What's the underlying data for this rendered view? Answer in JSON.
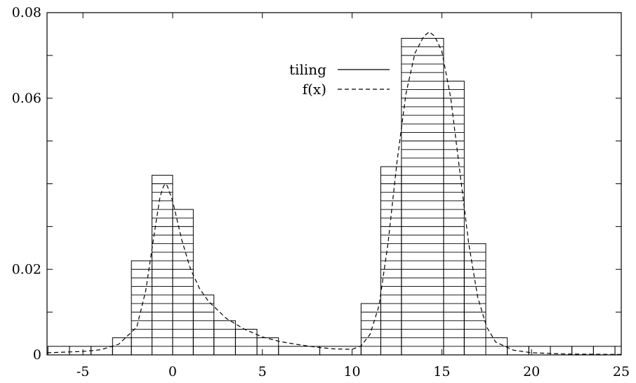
{
  "chart_data": {
    "type": "bar",
    "xlim": [
      -7,
      25
    ],
    "ylim": [
      0,
      0.08
    ],
    "x_ticks": [
      -5,
      0,
      5,
      10,
      15,
      20,
      25
    ],
    "y_ticks": [
      0,
      0.02,
      0.06,
      0.08
    ],
    "x_tick_labels": [
      "-5",
      "0",
      "5",
      "10",
      "15",
      "20",
      "25"
    ],
    "y_tick_labels": [
      "0",
      "0.02",
      "0.06",
      "0.08"
    ],
    "legend_position": "top-center",
    "grid": false,
    "series": [
      {
        "name": "tiling",
        "kind": "histogram",
        "line_style": "solid",
        "tile_height": 0.002,
        "bins": [
          {
            "x0": -6.95,
            "x1": -5.75,
            "y": 0.002
          },
          {
            "x0": -5.75,
            "x1": -4.55,
            "y": 0.002
          },
          {
            "x0": -4.55,
            "x1": -3.35,
            "y": 0.002
          },
          {
            "x0": -3.35,
            "x1": -2.3,
            "y": 0.004
          },
          {
            "x0": -2.3,
            "x1": -1.15,
            "y": 0.022
          },
          {
            "x0": -1.15,
            "x1": 0.0,
            "y": 0.042
          },
          {
            "x0": 0.0,
            "x1": 1.15,
            "y": 0.034
          },
          {
            "x0": 1.15,
            "x1": 2.3,
            "y": 0.014
          },
          {
            "x0": 2.3,
            "x1": 3.5,
            "y": 0.008
          },
          {
            "x0": 3.5,
            "x1": 4.7,
            "y": 0.006
          },
          {
            "x0": 4.7,
            "x1": 5.9,
            "y": 0.004
          },
          {
            "x0": 5.9,
            "x1": 8.2,
            "y": 0.002
          },
          {
            "x0": 8.2,
            "x1": 10.5,
            "y": 0.002
          },
          {
            "x0": 10.5,
            "x1": 11.6,
            "y": 0.012
          },
          {
            "x0": 11.6,
            "x1": 12.75,
            "y": 0.044
          },
          {
            "x0": 12.75,
            "x1": 15.1,
            "y": 0.074
          },
          {
            "x0": 15.1,
            "x1": 16.25,
            "y": 0.064
          },
          {
            "x0": 16.25,
            "x1": 17.45,
            "y": 0.026
          },
          {
            "x0": 17.45,
            "x1": 18.65,
            "y": 0.004
          },
          {
            "x0": 18.65,
            "x1": 19.85,
            "y": 0.002
          },
          {
            "x0": 19.85,
            "x1": 21.05,
            "y": 0.002
          },
          {
            "x0": 21.05,
            "x1": 22.25,
            "y": 0.002
          },
          {
            "x0": 22.25,
            "x1": 23.45,
            "y": 0.002
          },
          {
            "x0": 23.45,
            "x1": 24.65,
            "y": 0.002
          },
          {
            "x0": 24.65,
            "x1": 25.0,
            "y": 0.002
          }
        ]
      },
      {
        "name": "f(x)",
        "kind": "line",
        "line_style": "dashed",
        "x": [
          -7,
          -5,
          -4,
          -3,
          -2,
          -1.5,
          -1,
          -0.7,
          -0.5,
          -0.4,
          -0.3,
          0,
          0.5,
          1,
          1.5,
          2,
          3,
          4,
          5,
          6,
          7,
          8,
          9,
          10,
          10.5,
          11,
          11.5,
          12,
          12.5,
          13,
          13.5,
          14,
          14.3,
          14.6,
          15,
          15.5,
          16,
          16.5,
          17,
          17.5,
          18,
          19,
          20,
          22,
          25
        ],
        "y": [
          0.0005,
          0.0008,
          0.0012,
          0.0025,
          0.0065,
          0.015,
          0.029,
          0.037,
          0.0395,
          0.04,
          0.0395,
          0.036,
          0.027,
          0.02,
          0.0155,
          0.0125,
          0.0085,
          0.006,
          0.0042,
          0.0031,
          0.0024,
          0.0018,
          0.0014,
          0.0013,
          0.0021,
          0.0048,
          0.0115,
          0.026,
          0.045,
          0.061,
          0.0705,
          0.0745,
          0.0755,
          0.0745,
          0.071,
          0.06,
          0.043,
          0.026,
          0.0135,
          0.0065,
          0.003,
          0.0011,
          0.0005,
          0.0002,
          0.0001
        ]
      }
    ]
  }
}
